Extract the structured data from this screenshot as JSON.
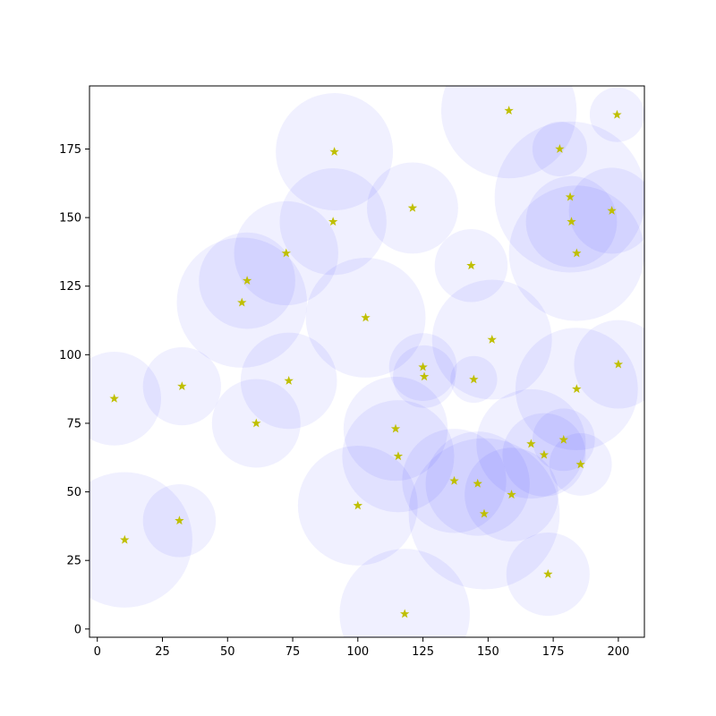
{
  "chart_data": {
    "type": "scatter",
    "title": "",
    "xlabel": "",
    "ylabel": "",
    "xlim": [
      -3,
      210
    ],
    "ylim": [
      -3,
      198
    ],
    "x_ticks": [
      0,
      25,
      50,
      75,
      100,
      125,
      150,
      175,
      200
    ],
    "y_ticks": [
      0,
      25,
      50,
      75,
      100,
      125,
      150,
      175
    ],
    "x_tick_labels": [
      "0",
      "25",
      "50",
      "75",
      "100",
      "125",
      "150",
      "175",
      "200"
    ],
    "y_tick_labels": [
      "0",
      "25",
      "50",
      "75",
      "100",
      "125",
      "150",
      "175"
    ],
    "grid": false,
    "marker": "star",
    "marker_color": "#bfbf00",
    "circle_color": "#0000ff",
    "circle_alpha": 0.06,
    "points": [
      {
        "x": 6.5,
        "y": 84,
        "r": 18
      },
      {
        "x": 10.5,
        "y": 32.5,
        "r": 26
      },
      {
        "x": 31.5,
        "y": 39.5,
        "r": 14
      },
      {
        "x": 32.5,
        "y": 88.5,
        "r": 15
      },
      {
        "x": 55.5,
        "y": 119,
        "r": 25
      },
      {
        "x": 57.5,
        "y": 127,
        "r": 18.5
      },
      {
        "x": 61,
        "y": 75,
        "r": 17
      },
      {
        "x": 72.5,
        "y": 137,
        "r": 20
      },
      {
        "x": 73.5,
        "y": 90.5,
        "r": 18.5
      },
      {
        "x": 90.5,
        "y": 148.5,
        "r": 20.5
      },
      {
        "x": 91,
        "y": 174,
        "r": 22.5
      },
      {
        "x": 100,
        "y": 45,
        "r": 23
      },
      {
        "x": 103,
        "y": 113.5,
        "r": 23
      },
      {
        "x": 114.5,
        "y": 73,
        "r": 20
      },
      {
        "x": 115.5,
        "y": 63,
        "r": 21.5
      },
      {
        "x": 118,
        "y": 5.5,
        "r": 25
      },
      {
        "x": 121,
        "y": 153.5,
        "r": 17.5
      },
      {
        "x": 125,
        "y": 95.5,
        "r": 13
      },
      {
        "x": 125.5,
        "y": 92,
        "r": 12
      },
      {
        "x": 137,
        "y": 54,
        "r": 20
      },
      {
        "x": 143.5,
        "y": 132.5,
        "r": 14
      },
      {
        "x": 144.5,
        "y": 91,
        "r": 9
      },
      {
        "x": 146,
        "y": 53,
        "r": 20
      },
      {
        "x": 148.5,
        "y": 42,
        "r": 29
      },
      {
        "x": 151.5,
        "y": 105.5,
        "r": 23
      },
      {
        "x": 158,
        "y": 189,
        "r": 26
      },
      {
        "x": 159,
        "y": 49,
        "r": 18
      },
      {
        "x": 166.5,
        "y": 67.5,
        "r": 21
      },
      {
        "x": 171.5,
        "y": 63.5,
        "r": 16
      },
      {
        "x": 173,
        "y": 20,
        "r": 16
      },
      {
        "x": 177.5,
        "y": 175,
        "r": 10.5
      },
      {
        "x": 179,
        "y": 69,
        "r": 12
      },
      {
        "x": 181.5,
        "y": 157.5,
        "r": 29
      },
      {
        "x": 182,
        "y": 148.5,
        "r": 17.5
      },
      {
        "x": 184,
        "y": 137,
        "r": 26
      },
      {
        "x": 184,
        "y": 87.5,
        "r": 23.5
      },
      {
        "x": 185.5,
        "y": 60,
        "r": 12
      },
      {
        "x": 197.5,
        "y": 152.5,
        "r": 16.5
      },
      {
        "x": 199.5,
        "y": 187.5,
        "r": 10.5
      },
      {
        "x": 200,
        "y": 96.5,
        "r": 17
      }
    ]
  }
}
